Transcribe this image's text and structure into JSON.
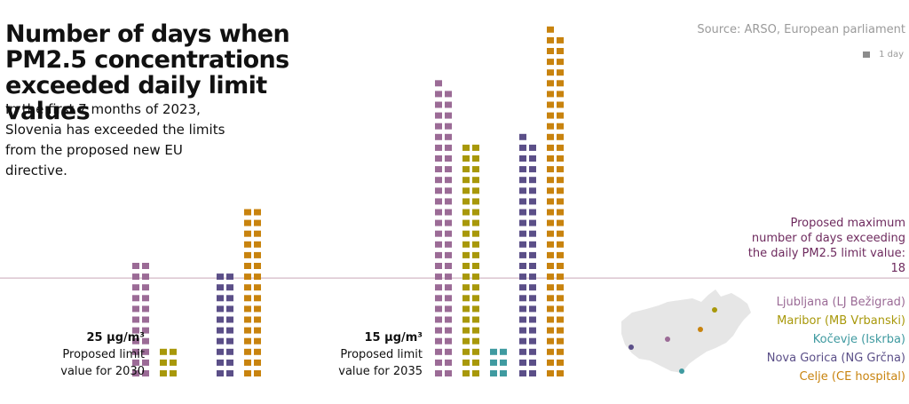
{
  "title": "Number of days when PM2.5 concentrations exceeded daily limit values",
  "subtitle": "In the first 7 months of 2023, Slovenia has exceeded the limits from the proposed new EU directive.",
  "source": "Source: ARSO, European parliament",
  "unit_legend": "1 day",
  "max_note": "Proposed maximum number of days exceeding the daily PM2.5 limit value: 18",
  "limits": [
    {
      "value": "25 μg/m³",
      "line1": "Proposed limit",
      "line2": "value for 2030"
    },
    {
      "value": "15 μg/m³",
      "line1": "Proposed limit",
      "line2": "value for 2035"
    }
  ],
  "colors": {
    "Ljubljana": "#9b6b96",
    "Maribor": "#a8980a",
    "Kocevje": "#3f9aa0",
    "NovaGorica": "#5b4f88",
    "Celje": "#c8830e",
    "threshold": "#c9a8b8",
    "map": "#e6e6e6"
  },
  "legend": [
    {
      "label": "Ljubljana (LJ Bežigrad)",
      "color": "#9b6b96"
    },
    {
      "label": "Maribor (MB Vrbanski)",
      "color": "#a8980a"
    },
    {
      "label": "Kočevje (Iskrba)",
      "color": "#3f9aa0"
    },
    {
      "label": "Nova Gorica (NG Grčna)",
      "color": "#5b4f88"
    },
    {
      "label": "Celje (CE hospital)",
      "color": "#c8830e"
    }
  ],
  "chart_data": {
    "type": "bar",
    "unit": "days",
    "threshold": 18,
    "categories": [
      "25 μg/m³",
      "15 μg/m³"
    ],
    "series": [
      {
        "name": "Ljubljana (LJ Bežigrad)",
        "values": [
          22,
          55
        ]
      },
      {
        "name": "Maribor (MB Vrbanski)",
        "values": [
          6,
          44
        ]
      },
      {
        "name": "Kočevje (Iskrba)",
        "values": [
          0,
          6
        ]
      },
      {
        "name": "Nova Gorica (NG Grčna)",
        "values": [
          20,
          45
        ]
      },
      {
        "name": "Celje (CE hospital)",
        "values": [
          32,
          65
        ]
      }
    ]
  }
}
